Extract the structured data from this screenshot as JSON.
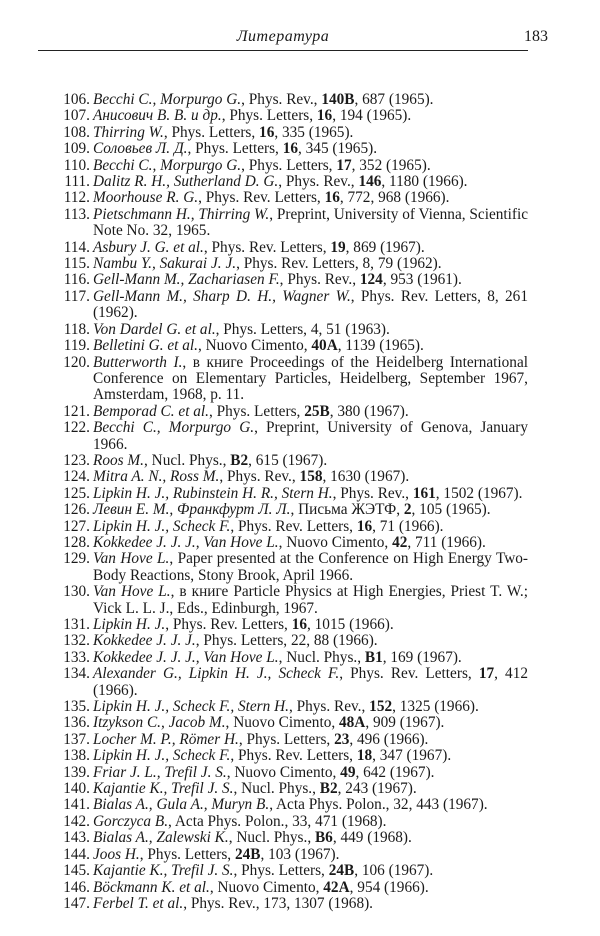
{
  "header": {
    "title": "Литература",
    "page_number": "183"
  },
  "references": [
    {
      "num": "106.",
      "authors": "Becchi C., Morpurgo G.",
      "source": [
        ", Phys. Rev., ",
        "140B",
        ", 687 (1965)."
      ]
    },
    {
      "num": "107.",
      "authors": "Анисович В. В. и др.",
      "source": [
        ", Phys. Letters, ",
        "16",
        ", 194 (1965)."
      ]
    },
    {
      "num": "108.",
      "authors": "Thirring W.",
      "source": [
        ", Phys. Letters, ",
        "16",
        ", 335 (1965)."
      ]
    },
    {
      "num": "109.",
      "authors": "Соловьев Л. Д.",
      "source": [
        ", Phys. Letters, ",
        "16",
        ", 345 (1965)."
      ]
    },
    {
      "num": "110.",
      "authors": "Becchi C., Morpurgo G.",
      "source": [
        ", Phys. Letters, ",
        "17",
        ", 352 (1965)."
      ]
    },
    {
      "num": "111.",
      "authors": "Dalitz R. H., Sutherland D. G.",
      "source": [
        ", Phys. Rev., ",
        "146",
        ", 1180 (1966)."
      ]
    },
    {
      "num": "112.",
      "authors": "Moorhouse R. G.",
      "source": [
        ", Phys. Rev. Letters, ",
        "16",
        ", 772, 968 (1966)."
      ]
    },
    {
      "num": "113.",
      "authors": "Pietschmann H., Thirring W.",
      "source": [
        ", Preprint, University of Vienna, Scientific Note No. 32, 1965."
      ]
    },
    {
      "num": "114.",
      "authors": "Asbury J. G. et al.",
      "source": [
        ", Phys. Rev. Letters, ",
        "19",
        ", 869 (1967)."
      ]
    },
    {
      "num": "115.",
      "authors": "Nambu Y., Sakurai J. J.",
      "source": [
        ", Phys. Rev. Letters, 8, 79 (1962)."
      ]
    },
    {
      "num": "116.",
      "authors": "Gell-Mann M., Zachariasen F.",
      "source": [
        ", Phys. Rev., ",
        "124",
        ", 953 (1961)."
      ]
    },
    {
      "num": "117.",
      "authors": "Gell-Mann M., Sharp D. H., Wagner W.",
      "source": [
        ", Phys. Rev. Letters, 8, 261 (1962)."
      ]
    },
    {
      "num": "118.",
      "authors": "Von Dardel G. et al.",
      "source": [
        ", Phys. Letters, 4, 51 (1963)."
      ]
    },
    {
      "num": "119.",
      "authors": "Belletini G. et al.",
      "source": [
        ", Nuovo Cimento, ",
        "40A",
        ", 1139 (1965)."
      ]
    },
    {
      "num": "120.",
      "authors": "Butterworth I.",
      "source": [
        ", в книге Proceedings of the Heidelberg International Conference on Elementary Particles, Heidelberg, September 1967, Amsterdam, 1968, p. 11."
      ]
    },
    {
      "num": "121.",
      "authors": "Bemporad C. et al.",
      "source": [
        ", Phys. Letters, ",
        "25B",
        ", 380 (1967)."
      ]
    },
    {
      "num": "122.",
      "authors": "Becchi C., Morpurgo G.",
      "source": [
        ", Preprint, University of Genova, January 1966."
      ]
    },
    {
      "num": "123.",
      "authors": "Roos M.",
      "source": [
        ", Nucl. Phys., ",
        "B2",
        ", 615 (1967)."
      ]
    },
    {
      "num": "124.",
      "authors": "Mitra A. N., Ross M.",
      "source": [
        ", Phys. Rev., ",
        "158",
        ", 1630 (1967)."
      ]
    },
    {
      "num": "125.",
      "authors": "Lipkin H. J., Rubinstein H. R., Stern H.",
      "source": [
        ", Phys. Rev., ",
        "161",
        ", 1502 (1967)."
      ]
    },
    {
      "num": "126.",
      "authors": "Левин Е. М., Франкфурт Л. Л.",
      "source": [
        ", Письма ЖЭТФ, ",
        "2",
        ", 105 (1965)."
      ]
    },
    {
      "num": "127.",
      "authors": "Lipkin H. J., Scheck F.",
      "source": [
        ", Phys. Rev. Letters, ",
        "16",
        ", 71 (1966)."
      ]
    },
    {
      "num": "128.",
      "authors": "Kokkedee J. J. J., Van Hove L.",
      "source": [
        ", Nuovo Cimento, ",
        "42",
        ", 711 (1966)."
      ]
    },
    {
      "num": "129.",
      "authors": "Van Hove L.",
      "source": [
        ", Paper presented at the Conference on High Energy Two-Body Reactions, Stony Brook, April 1966."
      ]
    },
    {
      "num": "130.",
      "authors": "Van Hove L.",
      "source": [
        ", в книге Particle Physics at High Energies, Priest T. W.; Vick L. L. J., Eds., Edinburgh, 1967."
      ]
    },
    {
      "num": "131.",
      "authors": "Lipkin H. J.",
      "source": [
        ", Phys. Rev. Letters, ",
        "16",
        ", 1015 (1966)."
      ]
    },
    {
      "num": "132.",
      "authors": "Kokkedee J. J. J.",
      "source": [
        ", Phys. Letters, 22, 88 (1966)."
      ]
    },
    {
      "num": "133.",
      "authors": "Kokkedee J. J. J., Van Hove L.",
      "source": [
        ", Nucl. Phys., ",
        "B1",
        ", 169 (1967)."
      ]
    },
    {
      "num": "134.",
      "authors": "Alexander G., Lipkin H. J., Scheck F.",
      "source": [
        ", Phys. Rev. Letters, ",
        "17",
        ", 412 (1966)."
      ]
    },
    {
      "num": "135.",
      "authors": "Lipkin H. J., Scheck F., Stern H.",
      "source": [
        ", Phys. Rev., ",
        "152",
        ", 1325 (1966)."
      ]
    },
    {
      "num": "136.",
      "authors": "Itzykson C., Jacob M.",
      "source": [
        ", Nuovo Cimento, ",
        "48A",
        ", 909 (1967)."
      ]
    },
    {
      "num": "137.",
      "authors": "Locher M. P., Römer H.",
      "source": [
        ", Phys. Letters, ",
        "23",
        ", 496 (1966)."
      ]
    },
    {
      "num": "138.",
      "authors": "Lipkin H. J., Scheck F.",
      "source": [
        ", Phys. Rev. Letters, ",
        "18",
        ", 347 (1967)."
      ]
    },
    {
      "num": "139.",
      "authors": "Friar J. L., Trefil J. S.",
      "source": [
        ", Nuovo Cimento, ",
        "49",
        ", 642 (1967)."
      ]
    },
    {
      "num": "140.",
      "authors": "Kajantie K., Trefil J. S.",
      "source": [
        ", Nucl. Phys., ",
        "B2",
        ", 243 (1967)."
      ]
    },
    {
      "num": "141.",
      "authors": "Bialas A., Gula A., Muryn B.",
      "source": [
        ", Acta Phys. Polon., 32, 443 (1967)."
      ]
    },
    {
      "num": "142.",
      "authors": "Gorczyca B.",
      "source": [
        ", Acta Phys. Polon., 33, 471 (1968)."
      ]
    },
    {
      "num": "143.",
      "authors": "Bialas A., Zalewski K.",
      "source": [
        ", Nucl. Phys., ",
        "B6",
        ", 449 (1968)."
      ]
    },
    {
      "num": "144.",
      "authors": "Joos H.",
      "source": [
        ", Phys. Letters, ",
        "24B",
        ", 103 (1967)."
      ]
    },
    {
      "num": "145.",
      "authors": "Kajantie K., Trefil J. S.",
      "source": [
        ", Phys. Letters, ",
        "24B",
        ", 106 (1967)."
      ]
    },
    {
      "num": "146.",
      "authors": "Böckmann K. et al.",
      "source": [
        ", Nuovo Cimento, ",
        "42A",
        ", 954 (1966)."
      ]
    },
    {
      "num": "147.",
      "authors": "Ferbel T. et al.",
      "source": [
        ", Phys. Rev., 173, 1307 (1968)."
      ]
    }
  ]
}
